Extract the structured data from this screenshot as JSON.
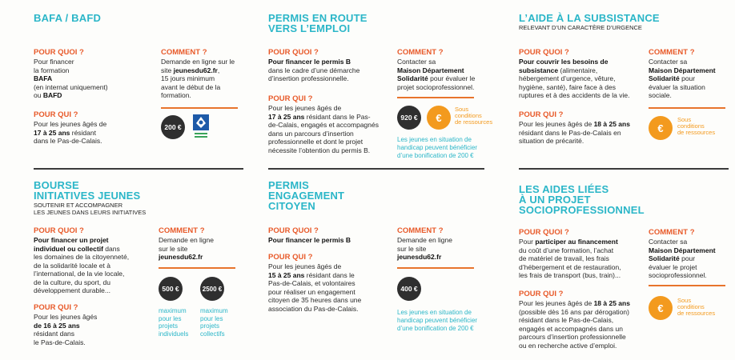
{
  "colors": {
    "title": "#2bb6c8",
    "label": "#e85a2a",
    "rule": "#e8742c",
    "badge": "#2f2f2f",
    "euro": "#f39a1e"
  },
  "bafa": {
    "title": "BAFA / BAFD",
    "pq_label": "POUR QUOI ?",
    "pq_l1": "Pour financer",
    "pq_l2": "la formation",
    "pq_l3": "BAFA",
    "pq_l4": "(en internat uniquement)",
    "pq_l5": "ou BAFD",
    "qui_label": "POUR QUI ?",
    "qui_l1": "Pour les jeunes âgés de",
    "qui_l2b": "17 à 25 ans",
    "qui_l2": " résidant",
    "qui_l3": "dans le Pas-de-Calais.",
    "cm_label": "COMMENT ?",
    "cm_l1": "Demande en ligne sur le",
    "cm_l2a": "site ",
    "cm_l2b": "jeunesdu62.fr",
    "cm_l2c": ",",
    "cm_l3": "15 jours minimum",
    "cm_l4": "avant le début de la",
    "cm_l5": "formation.",
    "amount": "200 €"
  },
  "permis_route": {
    "title1": "PERMIS EN ROUTE",
    "title2": "VERS L’EMPLOI",
    "pq_label": "POUR QUOI ?",
    "pq_l1": "Pour financer le permis B",
    "pq_l2": "dans le cadre d’une démarche",
    "pq_l3": "d’insertion professionnelle.",
    "qui_label": "POUR QUI ?",
    "qui_l1": "Pour les jeunes âgés de",
    "qui_l2b": "17 à 25 ans",
    "qui_l2": " résidant dans le Pas-",
    "qui_l3": "de-Calais, engagés et accompagnés",
    "qui_l4": "dans un parcours d’insertion",
    "qui_l5": "professionnelle et dont le projet",
    "qui_l6": "nécessite l’obtention du permis B.",
    "cm_label": "COMMENT ?",
    "cm_l1": "Contacter sa",
    "cm_l2": "Maison Département",
    "cm_l3": "Solidarité",
    "cm_l3b": " pour évaluer le",
    "cm_l4": "projet socioprofessionnel.",
    "amount": "920 €",
    "euro": "€",
    "cond1": "Sous",
    "cond2": "conditions",
    "cond3": "de ressources",
    "note1": "Les jeunes en situation de",
    "note2": "handicap peuvent bénéficier",
    "note3": "d’une bonification de 200 €"
  },
  "subsistance": {
    "title": "L’AIDE À LA SUBSISTANCE",
    "subtitle": "RELEVANT D’UN CARACTÈRE D’URGENCE",
    "pq_label": "POUR QUOI ?",
    "pq_l1": "Pour couvrir les besoins de",
    "pq_l2b": "subsistance",
    "pq_l2": " (alimentaire,",
    "pq_l3": "hébergement d’urgence, vêture,",
    "pq_l4": "hygiène, santé), faire face à des",
    "pq_l5": "ruptures et à des accidents de la vie.",
    "qui_label": "POUR QUI ?",
    "qui_l1a": "Pour les jeunes âgés de ",
    "qui_l1b": "18 à 25 ans",
    "qui_l2": "résidant dans le Pas-de-Calais en",
    "qui_l3": "situation de précarité.",
    "cm_label": "COMMENT ?",
    "cm_l1": "Contacter sa",
    "cm_l2": "Maison Département",
    "cm_l3": "Solidarité",
    "cm_l3b": " pour",
    "cm_l4": "évaluer la situation",
    "cm_l5": "sociale.",
    "euro": "€",
    "cond1": "Sous",
    "cond2": "conditions",
    "cond3": "de ressources"
  },
  "bourse": {
    "title1": "BOURSE",
    "title2": "INITIATIVES JEUNES",
    "sub1": "SOUTENIR ET ACCOMPAGNER",
    "sub2": "LES JEUNES DANS LEURS INITIATIVES",
    "pq_label": "POUR QUOI ?",
    "pq_l1": "Pour financer un projet",
    "pq_l2b": "individuel ou collectif",
    "pq_l2": " dans",
    "pq_l3": "les domaines de la citoyenneté,",
    "pq_l4": "de la solidarité locale et à",
    "pq_l5": "l’international, de la vie locale,",
    "pq_l6": "de la culture, du sport, du",
    "pq_l7": "développement durable...",
    "qui_label": "POUR QUI ?",
    "qui_l1": "Pour les jeunes âgés",
    "qui_l2": "de 16 à 25 ans",
    "qui_l3": "résidant dans",
    "qui_l4": "le Pas-de-Calais.",
    "cm_label": "COMMENT ?",
    "cm_l1": "Demande en ligne",
    "cm_l2": "sur le site",
    "cm_l3": "jeunesdu62.fr",
    "amount1": "500 €",
    "amount2": "2500 €",
    "m1_1": "maximum",
    "m1_2": "pour les",
    "m1_3": "projets",
    "m1_4": "individuels",
    "m2_1": "maximum",
    "m2_2": "pour les",
    "m2_3": "projets",
    "m2_4": "collectifs"
  },
  "permis_citoyen": {
    "title1": "PERMIS",
    "title2": "ENGAGEMENT",
    "title3": "CITOYEN",
    "pq_label": "POUR QUOI ?",
    "pq_l1": "Pour financer le permis B",
    "qui_label": "POUR QUI ?",
    "qui_l1": "Pour les jeunes âgés de",
    "qui_l2b": "15 à 25 ans",
    "qui_l2": " résidant dans le",
    "qui_l3": "Pas-de-Calais, et volontaires",
    "qui_l4": "pour réaliser un engagement",
    "qui_l5": "citoyen de 35 heures dans une",
    "qui_l6": "association du Pas-de-Calais.",
    "cm_label": "COMMENT ?",
    "cm_l1": "Demande en ligne",
    "cm_l2": "sur le site",
    "cm_l3": "jeunesdu62.fr",
    "amount": "400 €",
    "note1": "Les jeunes en situation de",
    "note2": "handicap peuvent bénéficier",
    "note3": "d’une bonification de 200 €"
  },
  "aides_projet": {
    "title1": "LES AIDES LIÉES",
    "title2": "À UN PROJET",
    "title3": "SOCIOPROFESSIONNEL",
    "pq_label": "POUR QUOI ?",
    "pq_l1a": "Pour ",
    "pq_l1b": "participer au financement",
    "pq_l2": "du coût d’une formation, l’achat",
    "pq_l3": "de matériel de travail, les frais",
    "pq_l4": "d’hébergement et de restauration,",
    "pq_l5": "les frais de transport (bus, train)...",
    "qui_label": "POUR QUI ?",
    "qui_l1a": "Pour les jeunes âgés de ",
    "qui_l1b": "18 à 25 ans",
    "qui_l2": "(possible dès 16 ans par dérogation)",
    "qui_l3": "résidant dans le Pas-de-Calais,",
    "qui_l4": "engagés et accompagnés dans un",
    "qui_l5": "parcours d’insertion professionnelle",
    "qui_l6": "ou en recherche active d’emploi.",
    "cm_label": "COMMENT ?",
    "cm_l1": "Contacter sa",
    "cm_l2": "Maison Département",
    "cm_l3": "Solidarité",
    "cm_l3b": " pour",
    "cm_l4": "évaluer le projet",
    "cm_l5": "socioprofessionnel.",
    "euro": "€",
    "cond1": "Sous",
    "cond2": "conditions",
    "cond3": "de ressources"
  }
}
